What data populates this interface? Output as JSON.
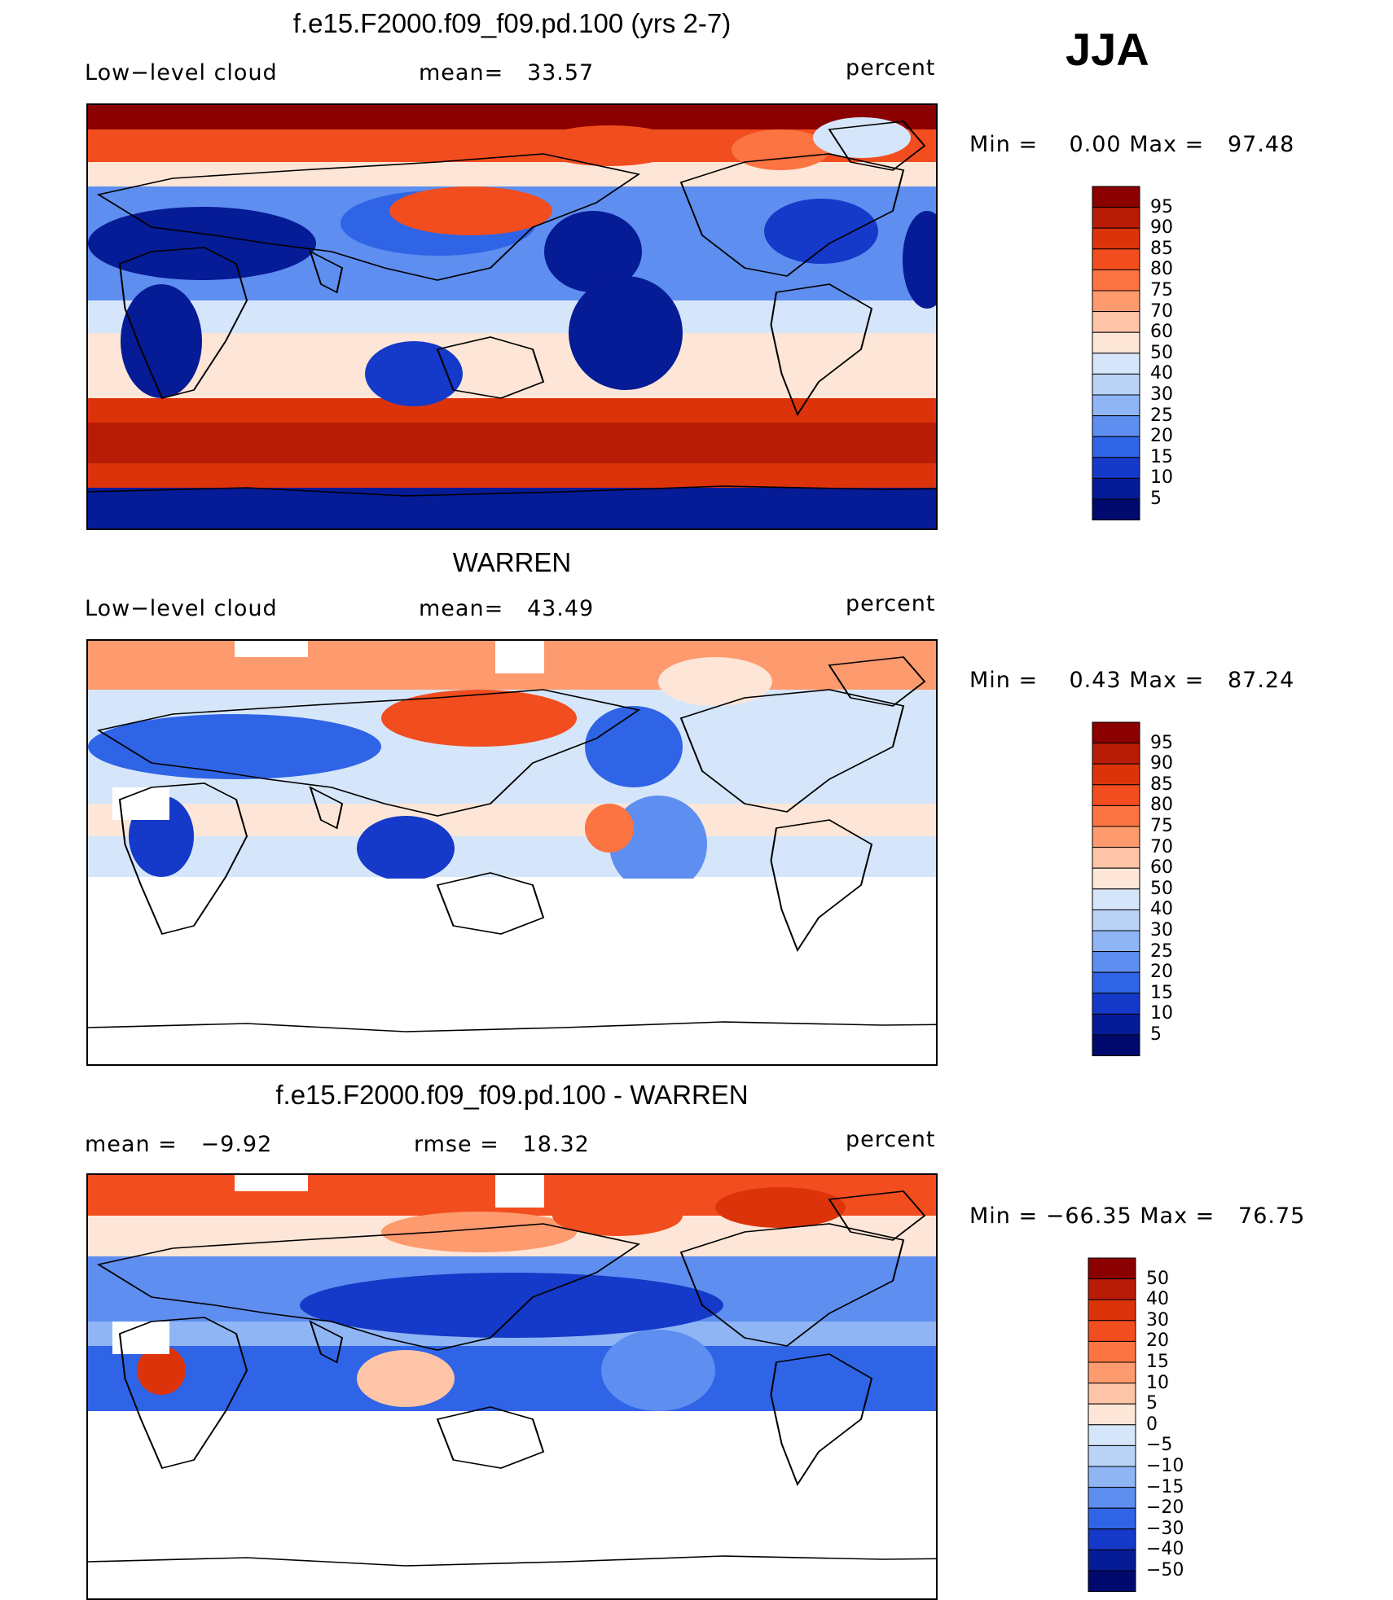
{
  "season": "JJA",
  "panels": [
    {
      "title": "f.e15.F2000.f09_f09.pd.100 (yrs 2-7)",
      "left_label": "Low−level cloud",
      "center_label": "mean=   33.57",
      "units": "percent",
      "min_label": "Min =",
      "min_value": "0.00",
      "max_label": "Max =",
      "max_value": "97.48",
      "colorbar_ticks": [
        "95",
        "90",
        "85",
        "80",
        "75",
        "70",
        "60",
        "50",
        "40",
        "30",
        "25",
        "20",
        "15",
        "10",
        "5"
      ]
    },
    {
      "title": "WARREN",
      "left_label": "Low−level cloud",
      "center_label": "mean=   43.49",
      "units": "percent",
      "min_label": "Min =",
      "min_value": "0.43",
      "max_label": "Max =",
      "max_value": "87.24",
      "colorbar_ticks": [
        "95",
        "90",
        "85",
        "80",
        "75",
        "70",
        "60",
        "50",
        "40",
        "30",
        "25",
        "20",
        "15",
        "10",
        "5"
      ]
    },
    {
      "title": "f.e15.F2000.f09_f09.pd.100 - WARREN",
      "left_label": "mean =   −9.92",
      "center_label": "rmse =   18.32",
      "units": "percent",
      "min_label": "Min =",
      "min_value": "−66.35",
      "max_label": "Max =",
      "max_value": "76.75",
      "colorbar_ticks": [
        "50",
        "40",
        "30",
        "20",
        "15",
        "10",
        "5",
        "0",
        "−5",
        "−10",
        "−15",
        "−20",
        "−30",
        "−40",
        "−50"
      ]
    }
  ],
  "colors": {
    "abs_scale": [
      "#8b0000",
      "#b81c06",
      "#dc330a",
      "#f24d1e",
      "#fb7442",
      "#fd9a6e",
      "#fdc4a8",
      "#fde6d7",
      "#d6e6fa",
      "#b9d3f7",
      "#8fb5f5",
      "#5e8ef0",
      "#2f64e6",
      "#1539c8",
      "#061b96",
      "#000a6e"
    ],
    "diff_scale": [
      "#8b0000",
      "#b81c06",
      "#dc330a",
      "#f24d1e",
      "#fb7442",
      "#fd9a6e",
      "#fdc4a8",
      "#fde6d7",
      "#d6e6fa",
      "#b9d3f7",
      "#8fb5f5",
      "#5e8ef0",
      "#2f64e6",
      "#1539c8",
      "#061b96",
      "#000a6e"
    ]
  },
  "chart_data": [
    {
      "type": "heatmap",
      "title": "f.e15.F2000.f09_f09.pd.100 (yrs 2-7)",
      "variable": "Low−level cloud",
      "units": "percent",
      "mean": 33.57,
      "min": 0.0,
      "max": 97.48,
      "contour_levels": [
        5,
        10,
        15,
        20,
        25,
        30,
        40,
        50,
        60,
        70,
        75,
        80,
        85,
        90,
        95
      ]
    },
    {
      "type": "heatmap",
      "title": "WARREN",
      "variable": "Low−level cloud",
      "units": "percent",
      "mean": 43.49,
      "min": 0.43,
      "max": 87.24,
      "contour_levels": [
        5,
        10,
        15,
        20,
        25,
        30,
        40,
        50,
        60,
        70,
        75,
        80,
        85,
        90,
        95
      ]
    },
    {
      "type": "heatmap",
      "title": "f.e15.F2000.f09_f09.pd.100 - WARREN",
      "units": "percent",
      "mean": -9.92,
      "rmse": 18.32,
      "min": -66.35,
      "max": 76.75,
      "contour_levels": [
        -50,
        -40,
        -30,
        -20,
        -15,
        -10,
        -5,
        0,
        5,
        10,
        15,
        20,
        30,
        40,
        50
      ]
    }
  ]
}
